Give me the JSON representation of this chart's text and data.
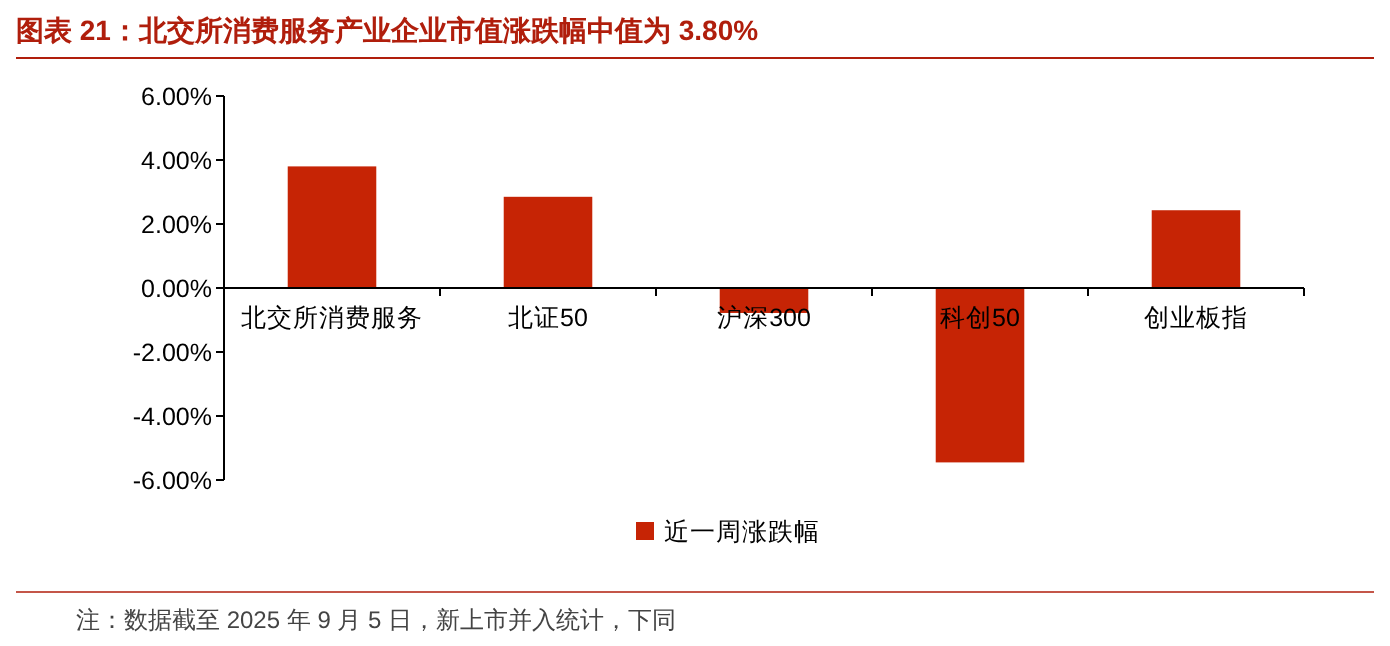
{
  "chart_data": {
    "type": "bar",
    "title": "图表 21：北交所消费服务产业企业市值涨跌幅中值为 3.80%",
    "categories": [
      "北交所消费服务",
      "北证50",
      "沪深300",
      "科创50",
      "创业板指"
    ],
    "series": [
      {
        "name": "近一周涨跌幅",
        "color": "#c62405",
        "values": [
          3.8,
          2.85,
          -0.78,
          -5.45,
          2.43
        ]
      }
    ],
    "ylim": [
      -6,
      6
    ],
    "yticks": [
      {
        "value": -6,
        "label": "-6.00%"
      },
      {
        "value": -4,
        "label": "-4.00%"
      },
      {
        "value": -2,
        "label": "-2.00%"
      },
      {
        "value": 0,
        "label": "0.00%"
      },
      {
        "value": 2,
        "label": "2.00%"
      },
      {
        "value": 4,
        "label": "4.00%"
      },
      {
        "value": 6,
        "label": "6.00%"
      }
    ],
    "grid": false,
    "legend": "bottom",
    "annotations": [
      "注：数据截至 2025 年 9 月 5 日，新上市并入统计，下同"
    ]
  }
}
